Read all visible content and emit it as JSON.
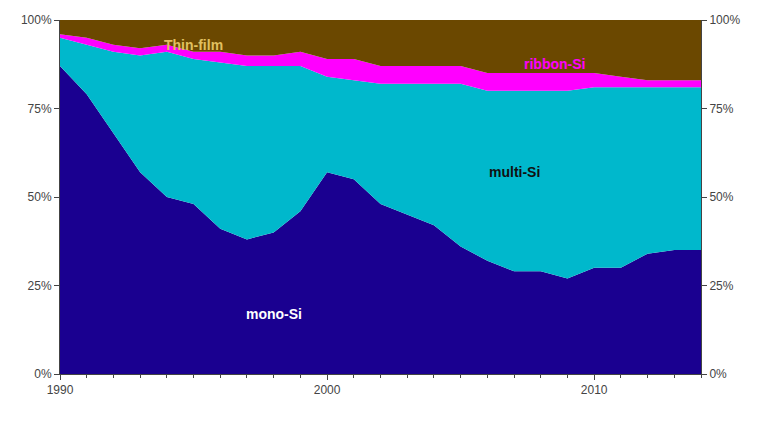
{
  "chart_data": {
    "type": "area",
    "stacked": true,
    "x": [
      1990,
      1991,
      1992,
      1993,
      1994,
      1995,
      1996,
      1997,
      1998,
      1999,
      2000,
      2001,
      2002,
      2003,
      2004,
      2005,
      2006,
      2007,
      2008,
      2009,
      2010,
      2011,
      2012,
      2013,
      2014
    ],
    "series": [
      {
        "color": "#1a0090",
        "values": [
          87,
          79,
          68,
          57,
          50,
          48,
          41,
          38,
          40,
          46,
          57,
          55,
          48,
          45,
          42,
          36,
          32,
          29,
          29,
          27,
          30,
          30,
          34,
          35,
          35
        ]
      },
      {
        "color": "#00b8cc",
        "values": [
          8,
          14,
          23,
          33,
          41,
          41,
          47,
          49,
          47,
          41,
          27,
          28,
          34,
          37,
          40,
          46,
          48,
          51,
          51,
          53,
          51,
          51,
          47,
          46,
          46
        ]
      },
      {
        "color": "#ff00ff",
        "values": [
          1,
          2,
          2,
          2,
          2,
          2,
          3,
          3,
          3,
          4,
          5,
          6,
          5,
          5,
          5,
          5,
          5,
          5,
          5,
          5,
          4,
          3,
          2,
          2,
          2
        ]
      },
      {
        "color": "#6b4800",
        "values": [
          4,
          5,
          7,
          8,
          7,
          9,
          9,
          10,
          10,
          9,
          11,
          11,
          13,
          13,
          13,
          13,
          15,
          15,
          15,
          15,
          15,
          16,
          17,
          17,
          17
        ]
      }
    ],
    "annotations": [
      {
        "text": "mono-Si",
        "x": 1998,
        "y": 17,
        "color": "#ffffff"
      },
      {
        "text": "multi-Si",
        "x": 2007,
        "y": 57,
        "color": "#111111"
      },
      {
        "text": "ribbon-Si",
        "x": 2008.5,
        "y": 87.5,
        "color": "#ff00ff"
      },
      {
        "text": "Thin-film",
        "x": 1995,
        "y": 93,
        "color": "#e0c060"
      }
    ],
    "xlim": [
      1990,
      2014
    ],
    "xticks": [
      1990,
      2000,
      2010
    ],
    "ylim": [
      0,
      100
    ],
    "yticks": [
      {
        "value": 0,
        "label": "0%"
      },
      {
        "value": 25,
        "label": "25%"
      },
      {
        "value": 50,
        "label": "50%"
      },
      {
        "value": 75,
        "label": "75%"
      },
      {
        "value": 100,
        "label": "100%"
      }
    ],
    "y2lim": [
      0,
      100
    ],
    "y2ticks": [
      {
        "value": 0,
        "label": "0%"
      },
      {
        "value": 25,
        "label": "25%"
      },
      {
        "value": 50,
        "label": "50%"
      },
      {
        "value": 75,
        "label": "75%"
      },
      {
        "value": 100,
        "label": "100%"
      }
    ],
    "grid": false
  }
}
